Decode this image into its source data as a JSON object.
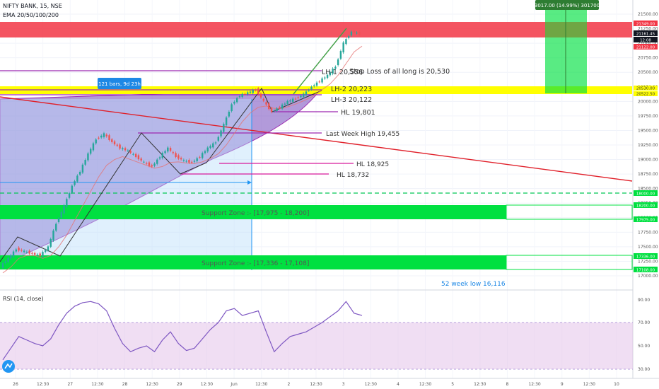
{
  "header": {
    "symbol_line": "NIFTY BANK, 15, NSE",
    "ema_line": "EMA 20/50/100/200"
  },
  "rsi": {
    "label": "RSI (14, close)",
    "ticks": [
      "90.00",
      "70.00",
      "50.00",
      "30.00"
    ]
  },
  "annotations": {
    "bars_box": "121 bars, 9d 23h",
    "measure_box": "3017.00 (14.99%) 301700",
    "lh1": "LH-1  20,556",
    "stop_loss": "Stop Loss of all long is 20,530",
    "lh2": "LH-2  20,223",
    "lh3": "LH-3  20,122",
    "hl_19801": "HL 19,801",
    "last_week_high": "Last Week High  19,455",
    "hl_18925": "HL  18,925",
    "hl_18732": "HL  18,732",
    "support_zone_1": "Support Zone :- [17,975 - 18,200]",
    "support_zone_2": "Support Zone :- [17,336 - 17,108]",
    "week52_low": "52 week  low 16,116"
  },
  "price_badges": {
    "b21349": "21349.00",
    "b21161": "21161.45",
    "b1208": "12:08",
    "b21122": "21122.00",
    "b20530": "20530.00",
    "b20522": "20522.50",
    "b18000": "18000.00",
    "b18200": "18200.00",
    "b17975": "17975.00",
    "b17336": "17336.00",
    "b17108": "17108.00"
  },
  "colors": {
    "resistance": "#f23645",
    "support": "#00e040",
    "highlight": "#ffff00",
    "purple_line": "#9c27b0",
    "trend_red": "#e0202a",
    "trend_green": "#43a047",
    "candle_up": "#26a69a",
    "candle_down": "#ef5350",
    "rsi_line": "#7e57c2"
  },
  "chart_data": {
    "type": "candlestick",
    "symbol": "NIFTY BANK",
    "interval": "15",
    "exchange": "NSE",
    "price_ticks": [
      21500,
      21250,
      21000,
      20750,
      20500,
      20250,
      20000,
      19750,
      19500,
      19250,
      19000,
      18750,
      18500,
      18250,
      18000,
      17750,
      17500,
      17250,
      17000
    ],
    "time_ticks": [
      "26",
      "12:30",
      "27",
      "12:30",
      "28",
      "12:30",
      "29",
      "12:30",
      "Jun",
      "12:30",
      "2",
      "12:30",
      "3",
      "12:30",
      "4",
      "12:30",
      "5",
      "12:30",
      "8",
      "12:30",
      "9",
      "12:30",
      "10"
    ],
    "price_path": [
      17160,
      17300,
      17460,
      17420,
      17380,
      17350,
      17500,
      17900,
      18200,
      18550,
      18800,
      19100,
      19350,
      19440,
      19300,
      19200,
      19150,
      19050,
      18950,
      18880,
      19050,
      19200,
      19050,
      18980,
      18950,
      19050,
      19200,
      19300,
      19600,
      19950,
      20100,
      20150,
      20200,
      20000,
      19820,
      19900,
      20000,
      20050,
      20120,
      20250,
      20350,
      20450,
      20600,
      21000,
      21200,
      21160
    ],
    "ema_path": [
      17050,
      17150,
      17300,
      17350,
      17350,
      17300,
      17350,
      17500,
      17700,
      17950,
      18200,
      18450,
      18700,
      18900,
      19000,
      19050,
      19000,
      18950,
      18900,
      18850,
      18880,
      18950,
      18960,
      18940,
      18930,
      18960,
      19020,
      19100,
      19250,
      19450,
      19650,
      19800,
      19900,
      19920,
      19880,
      19880,
      19920,
      19970,
      20030,
      20100,
      20200,
      20300,
      20450,
      20650,
      20850,
      20950
    ],
    "rsi_path": [
      38,
      48,
      58,
      55,
      52,
      50,
      56,
      68,
      78,
      84,
      87,
      88,
      86,
      80,
      65,
      52,
      45,
      48,
      50,
      45,
      55,
      62,
      52,
      46,
      48,
      56,
      64,
      70,
      80,
      82,
      76,
      78,
      80,
      62,
      45,
      52,
      58,
      60,
      62,
      66,
      70,
      75,
      80,
      88,
      78,
      76
    ],
    "rsi_range": [
      0,
      100
    ],
    "levels": [
      20556,
      20530,
      20223,
      20122,
      19801,
      19455,
      18925,
      18732
    ],
    "zones": [
      [
        21122,
        21349
      ],
      [
        20522.5,
        20530
      ],
      [
        17975,
        18200
      ],
      [
        17108,
        17336
      ]
    ],
    "measure": {
      "points": 3017.0,
      "percent": 14.99
    }
  }
}
